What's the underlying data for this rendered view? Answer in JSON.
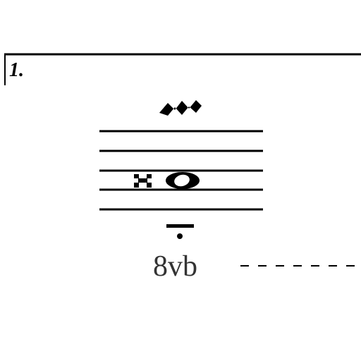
{
  "ending_bracket": {
    "number": "1."
  },
  "ornament": {
    "name": "mordent-icon"
  },
  "notes": {
    "x_notehead": "x-notehead",
    "whole_note": "whole-note"
  },
  "fermata": {
    "name": "fermata-below-icon"
  },
  "ottava": {
    "label": "8vb"
  },
  "colors": {
    "ink": "#000000",
    "ottava_text": "#333333",
    "background": "#ffffff"
  }
}
